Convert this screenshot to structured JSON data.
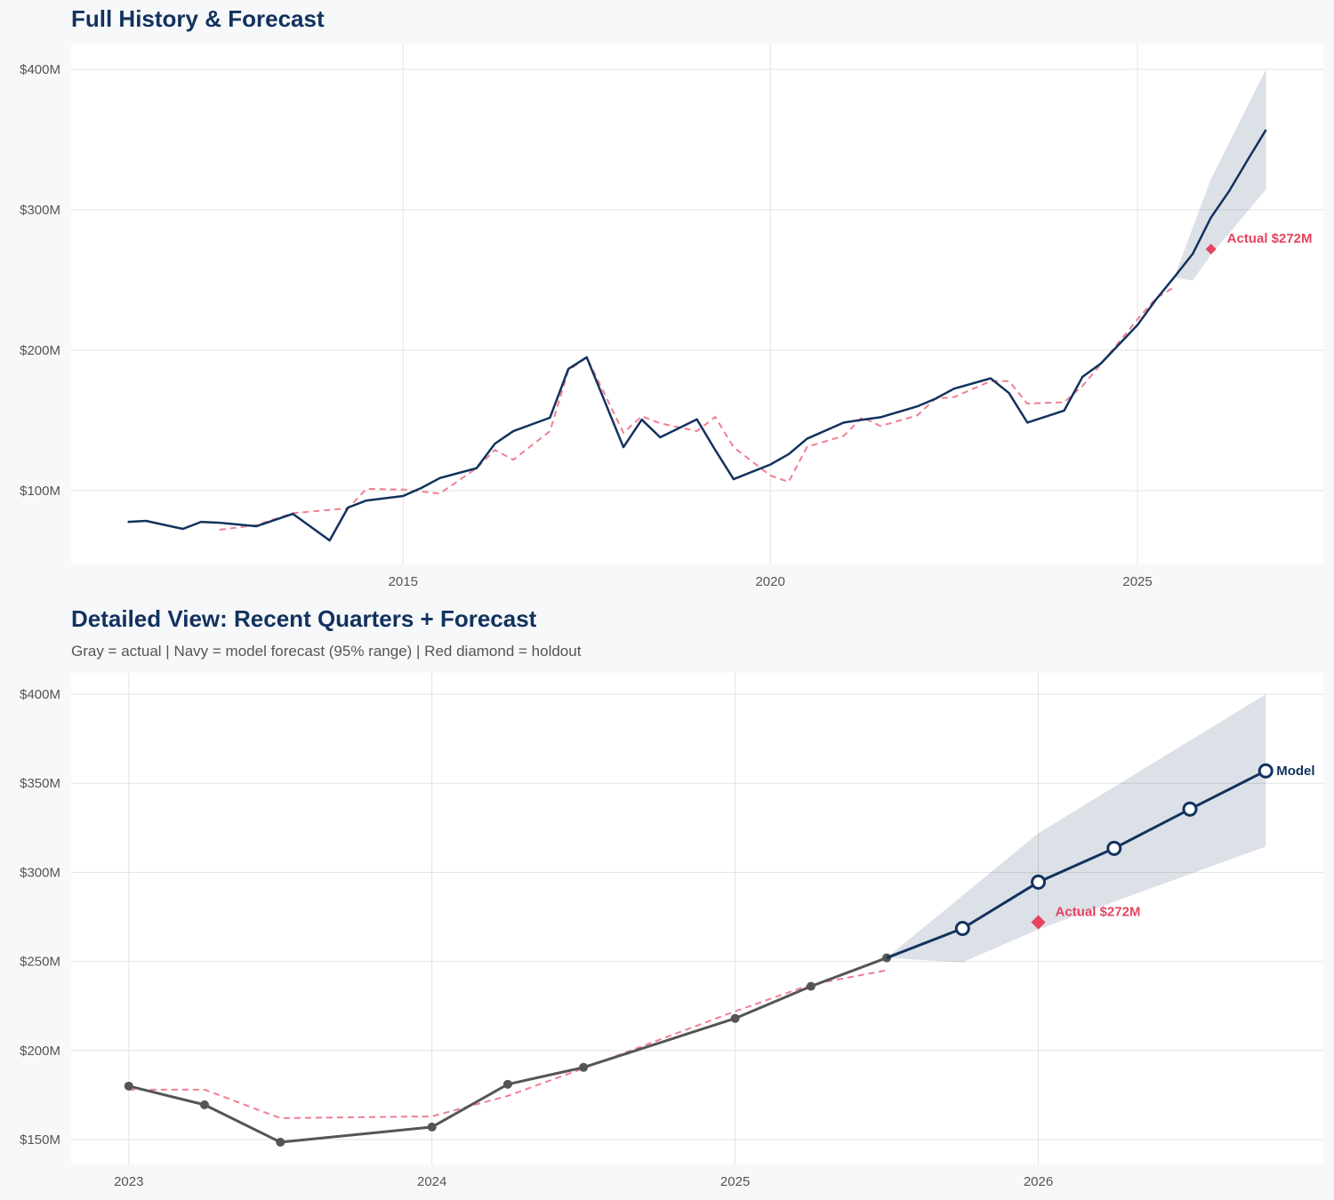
{
  "colors": {
    "navy": "#12325e",
    "actual_gray": "#555555",
    "fitted_pink": "#f07f92",
    "holdout_red": "#e5435e",
    "band": "#12325e",
    "grid": "#e3e3e3"
  },
  "chart_data": [
    {
      "type": "line",
      "title": "Full History & Forecast",
      "xlim": [
        2010.48,
        2027.53
      ],
      "ylim": [
        47.5,
        417.7
      ],
      "x_ticks": [
        2015,
        2020,
        2025
      ],
      "x_tick_labels": [
        "2015",
        "2020",
        "2025"
      ],
      "y_ticks": [
        100,
        200,
        300,
        400
      ],
      "y_tick_labels": [
        "$100M",
        "$200M",
        "$300M",
        "$400M"
      ],
      "grid": true,
      "series": [
        {
          "role": "actual",
          "style": "navy solid",
          "x": [
            2011.25,
            2011.5,
            2012,
            2012.25,
            2012.5,
            2013,
            2013.5,
            2014,
            2014.25,
            2014.5,
            2015,
            2015.25,
            2015.5,
            2016,
            2016.25,
            2016.5,
            2017,
            2017.25,
            2017.5,
            2018,
            2018.25,
            2018.5,
            2019,
            2019.25,
            2019.5,
            2020,
            2020.25,
            2020.5,
            2021,
            2021.25,
            2021.5,
            2022,
            2022.25,
            2022.5,
            2023,
            2023.25,
            2023.5,
            2024,
            2024.25,
            2024.5,
            2025,
            2025.25,
            2025.5
          ],
          "y": [
            77.8,
            78.5,
            72.8,
            77.8,
            77.2,
            74.7,
            83.5,
            64.6,
            88,
            93,
            96.2,
            102,
            109,
            116,
            133.5,
            142.4,
            152,
            186.7,
            195,
            131,
            150.6,
            138,
            150.8,
            129,
            108.2,
            118.6,
            126,
            137,
            148.5,
            150.5,
            152.3,
            160,
            165.5,
            172.6,
            180,
            169.5,
            148.5,
            157,
            181,
            190.5,
            218,
            236,
            252
          ]
        },
        {
          "role": "fitted",
          "style": "pink dashed",
          "x": [
            2012.5,
            2013,
            2013.5,
            2014.25,
            2014.5,
            2015,
            2015.5,
            2016,
            2016.25,
            2016.5,
            2017,
            2017.25,
            2017.5,
            2018,
            2018.25,
            2018.5,
            2019,
            2019.25,
            2019.5,
            2020,
            2020.25,
            2020.5,
            2021,
            2021.25,
            2021.5,
            2022,
            2022.25,
            2022.5,
            2023,
            2023.25,
            2023.5,
            2024,
            2024.25,
            2024.5,
            2025,
            2025.25,
            2025.5
          ],
          "y": [
            72.2,
            75.5,
            84,
            87.5,
            101.3,
            100.8,
            98,
            116,
            129,
            122,
            142.4,
            185.6,
            195,
            141.3,
            153,
            148,
            142.4,
            152.5,
            131,
            110.8,
            106.3,
            131.2,
            139,
            152.3,
            146,
            153.6,
            165.6,
            166.6,
            178,
            178,
            162,
            163,
            174.5,
            190,
            222,
            237,
            245
          ]
        },
        {
          "role": "forecast",
          "style": "navy solid",
          "x": [
            2025.5,
            2025.75,
            2026,
            2026.25,
            2026.5,
            2026.75
          ],
          "y": [
            252,
            268.5,
            294.5,
            313.5,
            335.5,
            357
          ]
        }
      ],
      "band_95": {
        "x": [
          2025.5,
          2025.75,
          2026,
          2026.25,
          2026.5,
          2026.75
        ],
        "lower": [
          252,
          249.5,
          268,
          283.5,
          299,
          314.5
        ],
        "upper": [
          252,
          287,
          322,
          348,
          374,
          400
        ]
      },
      "holdout": {
        "x": 2026,
        "y": 272,
        "label": "Actual $272M"
      }
    },
    {
      "type": "line",
      "title": "Detailed View: Recent Quarters + Forecast",
      "subtitle": "Gray = actual  |  Navy = model forecast (95% range)  |  Red diamond = holdout",
      "xlim": [
        2022.81,
        2026.94
      ],
      "ylim": [
        136,
        412
      ],
      "x_ticks": [
        2023,
        2024,
        2025,
        2026
      ],
      "x_tick_labels": [
        "2023",
        "2024",
        "2025",
        "2026"
      ],
      "y_ticks": [
        150,
        200,
        250,
        300,
        350,
        400
      ],
      "y_tick_labels": [
        "$150M",
        "$200M",
        "$250M",
        "$300M",
        "$350M",
        "$400M"
      ],
      "grid": true,
      "series": [
        {
          "role": "actual",
          "style": "gray solid with dots",
          "x": [
            2023,
            2023.25,
            2023.5,
            2024,
            2024.25,
            2024.5,
            2025,
            2025.25,
            2025.5
          ],
          "y": [
            180,
            169.5,
            148.5,
            157,
            181,
            190.5,
            218,
            236,
            252
          ]
        },
        {
          "role": "fitted",
          "style": "pink dashed",
          "x": [
            2023,
            2023.25,
            2023.5,
            2024,
            2024.25,
            2024.5,
            2025,
            2025.25,
            2025.5
          ],
          "y": [
            178,
            178,
            162,
            163,
            174.5,
            190,
            222,
            237,
            245
          ]
        },
        {
          "role": "forecast",
          "name": "Model",
          "style": "navy solid with open circles",
          "x": [
            2025.5,
            2025.75,
            2026,
            2026.25,
            2026.5,
            2026.75
          ],
          "y": [
            252,
            268.5,
            294.5,
            313.5,
            335.5,
            357
          ]
        }
      ],
      "band_95": {
        "x": [
          2025.5,
          2025.75,
          2026,
          2026.25,
          2026.5,
          2026.75
        ],
        "lower": [
          252,
          249.5,
          268,
          283.5,
          299,
          314.5
        ],
        "upper": [
          252,
          287,
          322,
          348,
          374,
          400
        ]
      },
      "holdout": {
        "x": 2026,
        "y": 272,
        "label": "Actual $272M"
      },
      "end_label": "Model"
    }
  ]
}
